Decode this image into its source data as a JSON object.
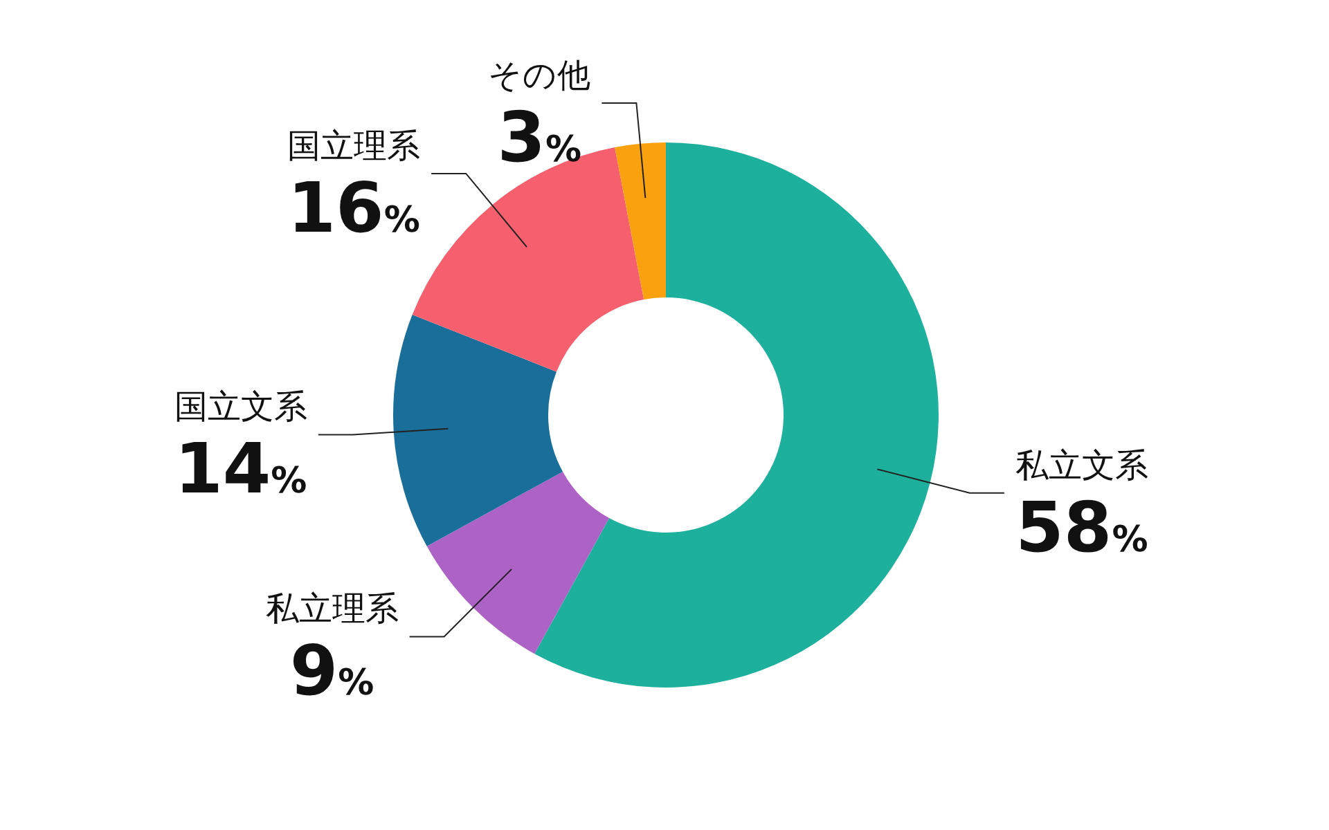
{
  "chart_data": {
    "type": "donut",
    "categories": [
      "私立文系",
      "私立理系",
      "国立文系",
      "国立理系",
      "その他"
    ],
    "values": [
      58,
      9,
      14,
      16,
      3
    ],
    "colors": [
      "#1db09c",
      "#ad63c6",
      "#1a6e9a",
      "#f55f6e",
      "#f9a10f"
    ],
    "value_labels": [
      "58%",
      "9%",
      "14%",
      "16%",
      "3%"
    ]
  }
}
